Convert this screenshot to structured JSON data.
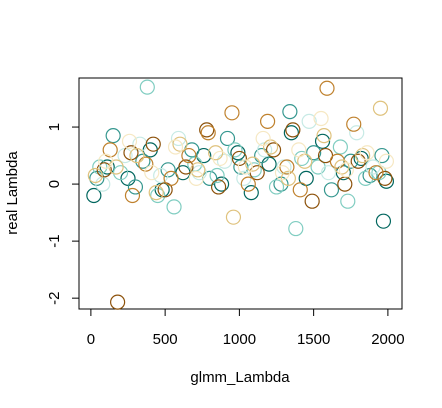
{
  "chart_data": {
    "type": "scatter",
    "x_label": "glmm_Lambda",
    "y_label": "real Lambda",
    "xlim": [
      -80,
      2095
    ],
    "ylim": [
      -2.19,
      1.86
    ],
    "xticks": [
      0,
      500,
      1000,
      1500,
      2000
    ],
    "yticks": [
      -2,
      -1,
      0,
      1
    ],
    "marker": "open-circle",
    "series": [
      {
        "color": "#01665e",
        "x": [
          20,
          110,
          250,
          400,
          480,
          620,
          760,
          880,
          990,
          1080,
          1200,
          1350,
          1450,
          1560,
          1700,
          1820,
          1970,
          1990
        ],
        "y": [
          -0.2,
          0.3,
          0.1,
          0.6,
          -0.1,
          0.2,
          0.5,
          0.0,
          0.55,
          -0.15,
          0.35,
          0.9,
          0.1,
          0.75,
          0.2,
          0.45,
          -0.65,
          0.05
        ]
      },
      {
        "color": "#35978f",
        "x": [
          40,
          150,
          300,
          350,
          520,
          680,
          800,
          920,
          1010,
          1150,
          1280,
          1340,
          1500,
          1620,
          1750,
          1880,
          1960
        ],
        "y": [
          0.1,
          0.85,
          -0.05,
          0.4,
          0.25,
          0.6,
          0.1,
          0.8,
          0.3,
          0.5,
          0.0,
          1.27,
          0.55,
          -0.1,
          0.4,
          0.15,
          0.5
        ]
      },
      {
        "color": "#80cdc1",
        "x": [
          60,
          200,
          380,
          450,
          560,
          700,
          850,
          970,
          1100,
          1250,
          1380,
          1420,
          1530,
          1680,
          1730,
          1850,
          1940
        ],
        "y": [
          0.3,
          0.2,
          1.7,
          -0.2,
          -0.4,
          0.35,
          0.15,
          0.6,
          0.25,
          -0.05,
          -0.78,
          0.45,
          0.3,
          0.65,
          -0.3,
          0.1,
          0.2
        ]
      },
      {
        "color": "#c7eae5",
        "x": [
          80,
          230,
          330,
          470,
          590,
          730,
          900,
          1030,
          1170,
          1300,
          1470,
          1600,
          1790,
          1900
        ],
        "y": [
          0.0,
          0.5,
          0.7,
          0.15,
          0.8,
          0.2,
          0.4,
          0.1,
          0.6,
          0.3,
          1.1,
          0.2,
          0.9,
          0.3
        ]
      },
      {
        "color": "#8c510a",
        "x": [
          90,
          180,
          270,
          420,
          500,
          640,
          780,
          860,
          1000,
          1120,
          1230,
          1360,
          1490,
          1580,
          1710,
          1800,
          1980
        ],
        "y": [
          0.25,
          -2.07,
          0.55,
          0.7,
          -0.1,
          0.3,
          0.95,
          -0.05,
          0.45,
          0.2,
          0.6,
          0.95,
          -0.3,
          0.5,
          0.0,
          0.4,
          0.1
        ]
      },
      {
        "color": "#bf812d",
        "x": [
          130,
          280,
          370,
          540,
          660,
          790,
          950,
          1060,
          1190,
          1320,
          1410,
          1590,
          1660,
          1770,
          1920
        ],
        "y": [
          0.6,
          -0.2,
          0.35,
          0.1,
          0.5,
          0.9,
          1.25,
          0.0,
          1.1,
          0.3,
          -0.1,
          1.68,
          0.4,
          1.05,
          0.2
        ]
      },
      {
        "color": "#dfc27d",
        "x": [
          30,
          170,
          310,
          440,
          600,
          720,
          840,
          960,
          1090,
          1210,
          1330,
          1440,
          1570,
          1690,
          1830,
          1950
        ],
        "y": [
          0.15,
          0.3,
          0.5,
          -0.15,
          0.7,
          0.25,
          0.55,
          -0.58,
          0.35,
          0.65,
          0.1,
          0.4,
          0.85,
          0.3,
          0.5,
          1.33
        ]
      },
      {
        "color": "#f6e8c3",
        "x": [
          100,
          260,
          410,
          570,
          710,
          870,
          1040,
          1160,
          1290,
          1400,
          1550,
          1720,
          1860,
          1990
        ],
        "y": [
          0.4,
          0.75,
          0.2,
          0.65,
          0.1,
          0.45,
          0.3,
          0.8,
          0.2,
          0.6,
          1.15,
          0.25,
          0.55,
          0.4
        ]
      }
    ]
  }
}
